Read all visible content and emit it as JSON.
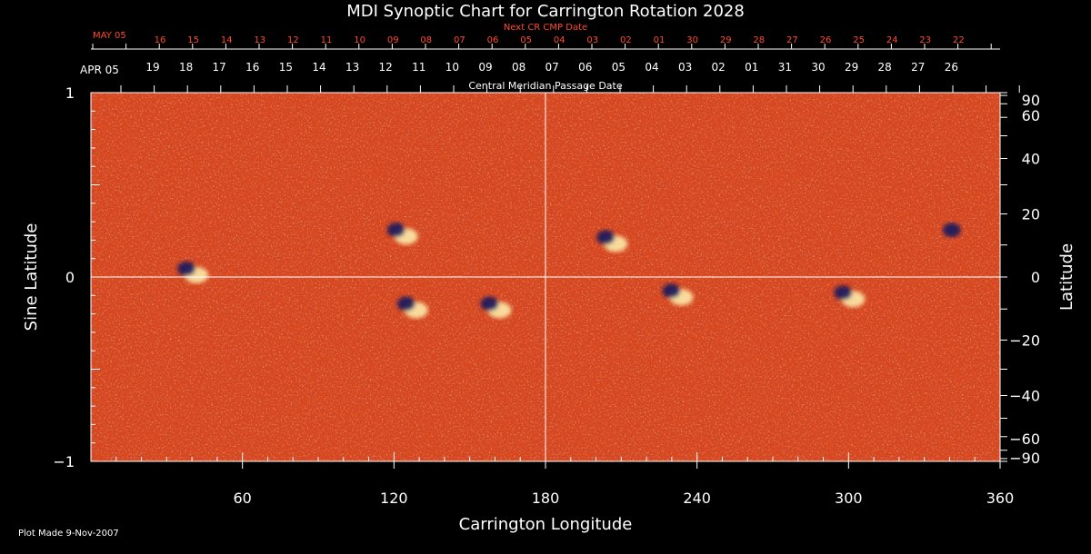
{
  "chart_data": {
    "type": "heatmap",
    "title": "MDI Synoptic Chart for Carrington Rotation 2028",
    "xlabel": "Carrington Longitude",
    "ylabel_left": "Sine Latitude",
    "ylabel_right": "Latitude",
    "xlim": [
      0,
      360
    ],
    "ylim": [
      -1,
      1
    ],
    "x_ticks": [
      "60",
      "120",
      "180",
      "240",
      "300",
      "360"
    ],
    "x_tick_values": [
      60,
      120,
      180,
      240,
      300,
      360
    ],
    "y_ticks_left": [
      "1",
      "0",
      "−1"
    ],
    "y_tick_values_left": [
      1,
      0,
      -1
    ],
    "y_ticks_right": [
      "90",
      "60",
      "40",
      "20",
      "0",
      "−20",
      "−40",
      "−60",
      "−90"
    ],
    "y_tick_values_right": [
      90,
      60,
      40,
      20,
      0,
      -20,
      -40,
      -60,
      -90
    ],
    "top_axis_1": {
      "caption": "Next CR CMP Date",
      "start_label": "MAY 05",
      "labels": [
        "16",
        "15",
        "14",
        "13",
        "12",
        "11",
        "10",
        "09",
        "08",
        "07",
        "06",
        "05",
        "04",
        "03",
        "02",
        "01",
        "30",
        "29",
        "28",
        "27",
        "26",
        "25",
        "24",
        "23",
        "22"
      ]
    },
    "top_axis_2": {
      "caption": "Central Meridian Passage Date",
      "start_label": "APR 05",
      "labels": [
        "19",
        "18",
        "17",
        "16",
        "15",
        "14",
        "13",
        "12",
        "11",
        "10",
        "09",
        "08",
        "07",
        "06",
        "05",
        "04",
        "03",
        "02",
        "01",
        "31",
        "30",
        "29",
        "28",
        "27",
        "26"
      ]
    },
    "crosshair": {
      "longitude": 180,
      "sine_latitude": 0
    },
    "colors": {
      "background_field": "#d8461e",
      "positive": "#fff2b0",
      "negative": "#1a1b5c",
      "axes": "#ffffff",
      "top_axis_1": "#ff4a2a"
    },
    "active_regions": [
      {
        "longitude": 40,
        "sine_latitude": 0.03,
        "polarity": "mixed"
      },
      {
        "longitude": 123,
        "sine_latitude": 0.24,
        "polarity": "mixed"
      },
      {
        "longitude": 127,
        "sine_latitude": -0.16,
        "polarity": "mixed"
      },
      {
        "longitude": 160,
        "sine_latitude": -0.16,
        "polarity": "mixed"
      },
      {
        "longitude": 206,
        "sine_latitude": 0.2,
        "polarity": "mixed"
      },
      {
        "longitude": 232,
        "sine_latitude": -0.09,
        "polarity": "mixed"
      },
      {
        "longitude": 300,
        "sine_latitude": -0.1,
        "polarity": "mixed"
      },
      {
        "longitude": 343,
        "sine_latitude": 0.24,
        "polarity": "negative"
      }
    ]
  },
  "footer": {
    "plot_made": "Plot Made  9-Nov-2007"
  }
}
